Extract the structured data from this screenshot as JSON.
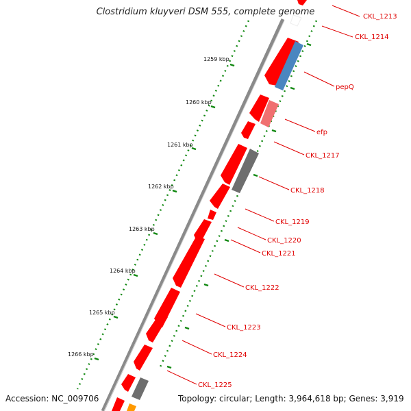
{
  "title": "Clostridium kluyveri DSM 555, complete genome",
  "accession": "Accession: NC_009706",
  "topology": "Topology: circular; Length: 3,964,618 bp; Genes: 3,919",
  "scale_ticks": [
    "1259 kbp",
    "1260 kbp",
    "1261 kbp",
    "1262 kbp",
    "1263 kbp",
    "1264 kbp",
    "1265 kbp",
    "1266 kbp"
  ],
  "gene_labels": [
    "CKL_1213",
    "CKL_1214",
    "pepQ",
    "efp",
    "CKL_1217",
    "CKL_1218",
    "CKL_1219",
    "CKL_1220",
    "CKL_1221",
    "CKL_1222",
    "CKL_1223",
    "CKL_1224",
    "CKL_1225"
  ],
  "colors": {
    "cds": "#ff0000",
    "pepQ": "#4a86c0",
    "efp": "#f07070",
    "grey_feature": "#6e6e6e",
    "orange_feature": "#ff9900",
    "backbone": "#8a8a8a",
    "dotted_track": "#118811",
    "label_line": "#e00000"
  }
}
